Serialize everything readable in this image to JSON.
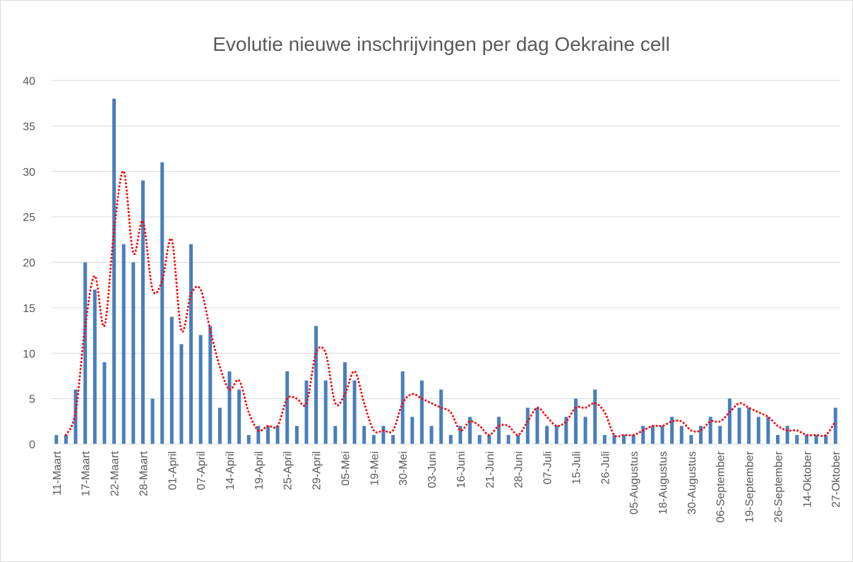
{
  "chart_data": {
    "type": "bar",
    "title": "Evolutie nieuwe inschrijvingen per dag Oekraine cell",
    "categories": [
      "11-Maart",
      null,
      null,
      "17-Maart",
      null,
      null,
      "22-Maart",
      null,
      null,
      "28-Maart",
      null,
      null,
      "01-April",
      null,
      null,
      "07-April",
      null,
      null,
      "14-April",
      null,
      null,
      "19-April",
      null,
      null,
      "25-April",
      null,
      null,
      "29-April",
      null,
      null,
      "05-Mei",
      null,
      null,
      "19-Mei",
      null,
      null,
      "30-Mei",
      null,
      null,
      "03-Juni",
      null,
      null,
      "16-Juni",
      null,
      null,
      "21-Juni",
      null,
      null,
      "28-Juni",
      null,
      null,
      "07-Juli",
      null,
      null,
      "15-Juli",
      null,
      null,
      "26-Juli",
      null,
      null,
      "05-Augustus",
      null,
      null,
      "18-Augustus",
      null,
      null,
      "30-Augustus",
      null,
      null,
      "06-September",
      null,
      null,
      "19-September",
      null,
      null,
      "26-September",
      null,
      null,
      "14-Oktober",
      null,
      null,
      "27-Oktober"
    ],
    "values": [
      1,
      1,
      6,
      20,
      17,
      9,
      38,
      22,
      20,
      29,
      5,
      31,
      14,
      11,
      22,
      12,
      13,
      4,
      8,
      6,
      1,
      2,
      2,
      2,
      8,
      2,
      7,
      13,
      7,
      2,
      9,
      7,
      2,
      1,
      2,
      1,
      8,
      3,
      7,
      2,
      6,
      1,
      2,
      3,
      1,
      1,
      3,
      1,
      1,
      4,
      4,
      2,
      2,
      3,
      5,
      3,
      6,
      1,
      1,
      1,
      1,
      2,
      2,
      2,
      3,
      2,
      1,
      2,
      3,
      2,
      5,
      4,
      4,
      3,
      3,
      1,
      2,
      1,
      1,
      1,
      1,
      4
    ],
    "color": "#4a7ebb",
    "trendline": {
      "type": "moving_average",
      "period": 2,
      "color": "#ff0000"
    },
    "ylim": [
      0,
      40
    ],
    "yticks": [
      0,
      5,
      10,
      15,
      20,
      25,
      30,
      35,
      40
    ],
    "grid": true
  }
}
